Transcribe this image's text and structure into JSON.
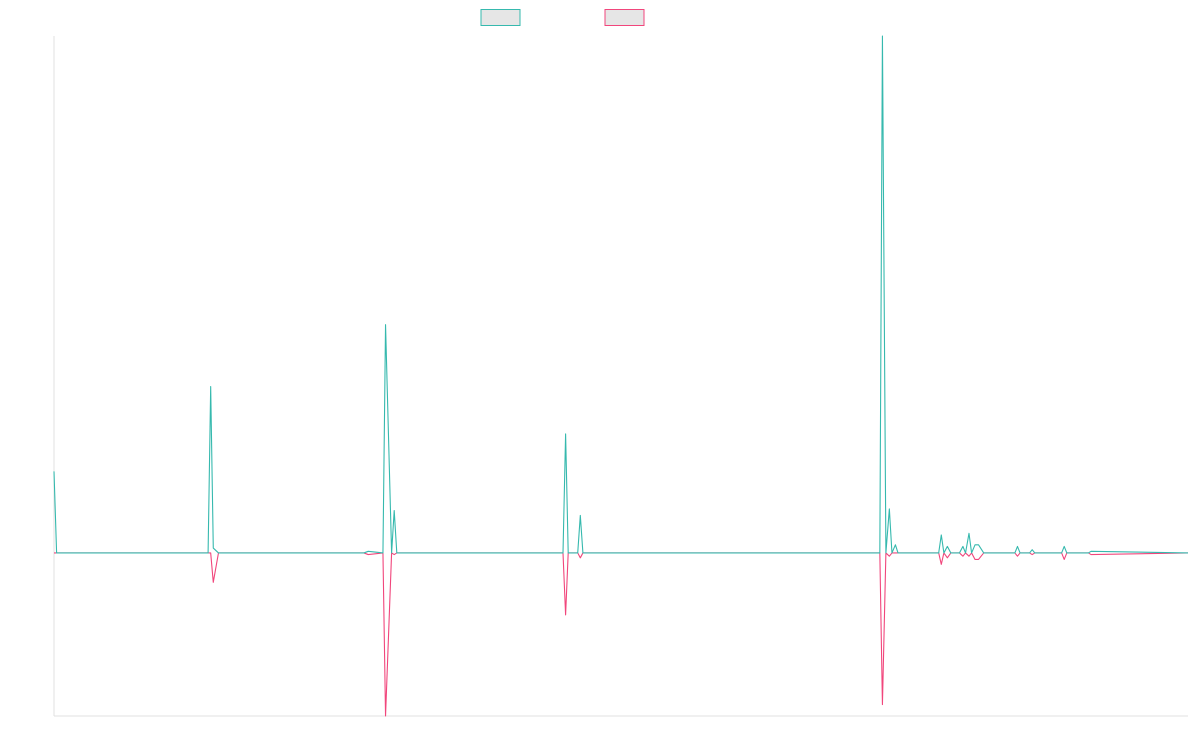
{
  "colors": {
    "series_1": "#36b9ae",
    "series_2": "#f1467c",
    "legend_fill": "#e6e6e6",
    "axis": "#e0e0e0",
    "background": "#ffffff"
  },
  "legend": {
    "placement": "top-center",
    "entries": [
      {
        "name": "",
        "color": "#36b9ae"
      },
      {
        "name": "",
        "color": "#f1467c"
      }
    ]
  },
  "chart_data": {
    "type": "line",
    "title": "",
    "xlabel": "",
    "ylabel": "",
    "grid": false,
    "xlim": [
      0,
      131
    ],
    "ylim": [
      -10,
      31.7
    ],
    "x": [
      0,
      0.3,
      17.8,
      18.1,
      18.4,
      19.0,
      35.8,
      36.3,
      38.0,
      38.3,
      39.0,
      39.3,
      39.6,
      58.8,
      59.1,
      59.4,
      60.5,
      60.8,
      61.1,
      95.4,
      95.7,
      96.1,
      96.5,
      96.8,
      97.2,
      97.5,
      102.2,
      102.5,
      102.8,
      103.2,
      103.6,
      104.6,
      105.0,
      105.3,
      105.7,
      106.0,
      106.4,
      106.8,
      107.4,
      111.0,
      111.3,
      111.6,
      112.7,
      113.0,
      113.3,
      116.4,
      116.7,
      117.0,
      119.5,
      119.8,
      131
    ],
    "series": [
      {
        "color": "#36b9ae",
        "values": [
          5.0,
          0.0,
          0.0,
          10.2,
          0.3,
          0.0,
          0.0,
          0.1,
          0.0,
          14.0,
          0.0,
          2.6,
          0.0,
          0.0,
          7.3,
          0.0,
          0.0,
          2.3,
          0.0,
          0.0,
          31.7,
          0.0,
          2.7,
          0.0,
          0.5,
          0.0,
          0.0,
          1.1,
          0.0,
          0.4,
          0.0,
          0.0,
          0.4,
          0.0,
          1.2,
          0.0,
          0.5,
          0.5,
          0.0,
          0.0,
          0.4,
          0.0,
          0.0,
          0.2,
          0.0,
          0.0,
          0.4,
          0.0,
          0.0,
          0.1,
          0.0
        ]
      },
      {
        "color": "#f1467c",
        "values": [
          0.0,
          0.0,
          0.0,
          0.0,
          -1.8,
          0.0,
          0.0,
          -0.1,
          0.0,
          -10.0,
          0.0,
          -0.1,
          0.0,
          0.0,
          -3.8,
          0.0,
          0.0,
          -0.3,
          0.0,
          0.0,
          -9.3,
          0.0,
          -0.2,
          0.0,
          0.0,
          0.0,
          0.0,
          -0.7,
          0.0,
          -0.3,
          0.0,
          0.0,
          -0.2,
          0.0,
          -0.2,
          0.0,
          -0.4,
          -0.4,
          0.0,
          0.0,
          -0.2,
          0.0,
          0.0,
          -0.1,
          0.0,
          0.0,
          -0.4,
          0.0,
          0.0,
          -0.1,
          0.0
        ]
      }
    ]
  }
}
